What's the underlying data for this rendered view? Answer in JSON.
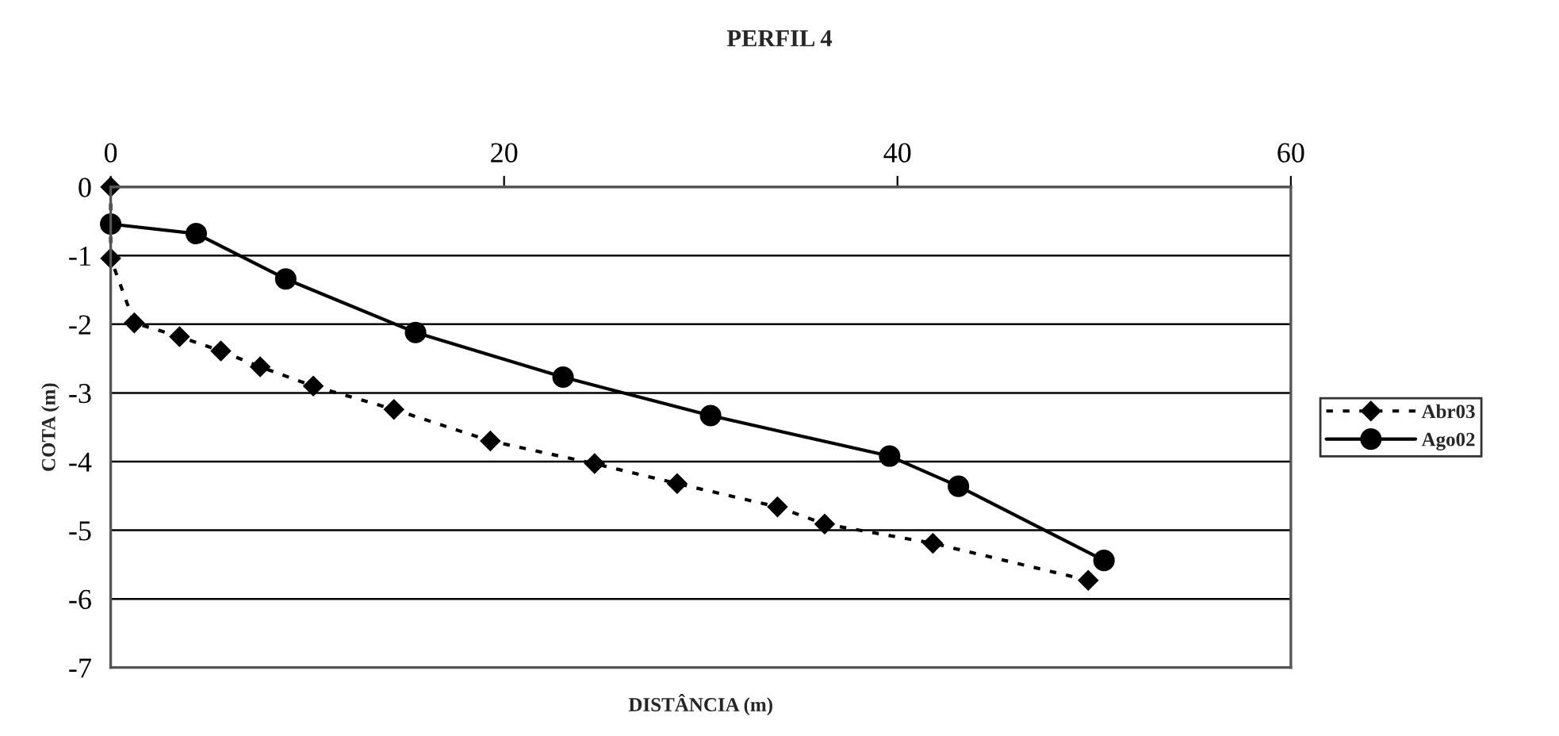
{
  "chart_data": {
    "type": "line",
    "title": "PERFIL 4",
    "xlabel": "DISTÂNCIA (m)",
    "ylabel": "COTA (m)",
    "xlim": [
      0,
      60
    ],
    "xticks": [
      0,
      20,
      40,
      60
    ],
    "ylim": [
      -7,
      0
    ],
    "yticks": [
      -7,
      -6,
      -5,
      -4,
      -3,
      -2,
      -1,
      0
    ],
    "grid": "y",
    "legend": "right",
    "series": [
      {
        "name": "Abr03",
        "color": "#000000",
        "marker": "diamond",
        "line_style": "dotted",
        "x": [
          0,
          0,
          1.2,
          3.5,
          5.6,
          7.6,
          10.3,
          14.4,
          19.3,
          24.6,
          28.8,
          33.9,
          36.3,
          41.8,
          49.7
        ],
        "values": [
          0,
          -1.04,
          -1.98,
          -2.18,
          -2.39,
          -2.62,
          -2.9,
          -3.24,
          -3.7,
          -4.03,
          -4.32,
          -4.66,
          -4.91,
          -5.19,
          -5.73
        ]
      },
      {
        "name": "Ago02",
        "color": "#000000",
        "marker": "circle",
        "line_style": "solid",
        "x": [
          0,
          4.35,
          8.9,
          15.5,
          23.0,
          30.5,
          39.6,
          43.1,
          50.5
        ],
        "values": [
          -0.54,
          -0.68,
          -1.34,
          -2.12,
          -2.77,
          -3.33,
          -3.92,
          -4.36,
          -5.44
        ]
      }
    ]
  }
}
